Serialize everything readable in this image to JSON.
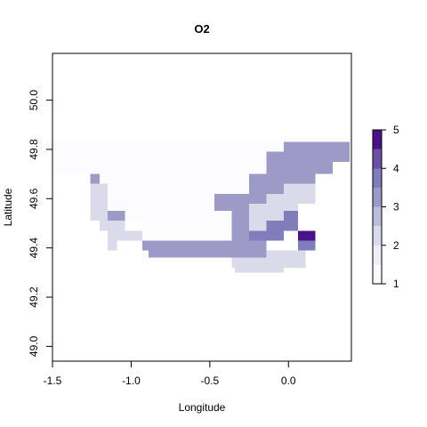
{
  "title": "O2",
  "xlabel": "Longitude",
  "ylabel": "Latitude",
  "x_ticks": [
    {
      "value": -1.5,
      "label": "-1.5"
    },
    {
      "value": -1.0,
      "label": "-1.0"
    },
    {
      "value": -0.5,
      "label": "-0.5"
    },
    {
      "value": 0.0,
      "label": "0.0"
    }
  ],
  "y_ticks": [
    {
      "value": 49.0,
      "label": "49.0"
    },
    {
      "value": 49.2,
      "label": "49.2"
    },
    {
      "value": 49.4,
      "label": "49.4"
    },
    {
      "value": 49.6,
      "label": "49.6"
    },
    {
      "value": 49.8,
      "label": "49.8"
    },
    {
      "value": 50.0,
      "label": "50.0"
    }
  ],
  "legend": {
    "range": [
      1,
      5
    ],
    "ticks": [
      {
        "value": 1,
        "label": "1"
      },
      {
        "value": 2,
        "label": "2"
      },
      {
        "value": 3,
        "label": "3"
      },
      {
        "value": 4,
        "label": "4"
      },
      {
        "value": 5,
        "label": "5"
      }
    ],
    "bins": [
      1,
      1.5,
      2,
      2.5,
      3,
      3.5,
      4,
      4.5,
      5
    ],
    "colors": [
      "#fcfbfd",
      "#efedf5",
      "#dadaeb",
      "#bcbddc",
      "#9e9ac8",
      "#807dba",
      "#6a51a3",
      "#4a1486"
    ]
  },
  "chart_data": {
    "type": "heatmap",
    "title": "O2",
    "xlabel": "Longitude",
    "ylabel": "Latitude",
    "xlim": [
      -1.5,
      0.4
    ],
    "ylim": [
      48.94,
      50.19
    ],
    "cell_size": {
      "lon": 0.11,
      "lat": 0.037
    },
    "color_scale": {
      "min": 1,
      "max": 5
    },
    "cells": [
      {
        "lon": [
          -1.5,
          0.39
        ],
        "lat": [
          49.79,
          49.83
        ],
        "value": 1.1
      },
      {
        "lon": [
          -1.5,
          -0.03
        ],
        "lat": [
          49.75,
          49.79
        ],
        "value": 1.1
      },
      {
        "lon": [
          -1.5,
          -0.14
        ],
        "lat": [
          49.7,
          49.75
        ],
        "value": 1.1
      },
      {
        "lon": [
          -1.26,
          -0.25
        ],
        "lat": [
          49.66,
          49.7
        ],
        "value": 1.1
      },
      {
        "lon": [
          -1.2,
          -0.25
        ],
        "lat": [
          49.62,
          49.66
        ],
        "value": 1.1
      },
      {
        "lon": [
          -1.15,
          -0.47
        ],
        "lat": [
          49.58,
          49.62
        ],
        "value": 1.1
      },
      {
        "lon": [
          -1.15,
          -0.47
        ],
        "lat": [
          49.55,
          49.58
        ],
        "value": 1.1
      },
      {
        "lon": [
          -1.04,
          -0.36
        ],
        "lat": [
          49.51,
          49.55
        ],
        "value": 1.1
      },
      {
        "lon": [
          -0.93,
          -0.36
        ],
        "lat": [
          49.47,
          49.51
        ],
        "value": 1.1
      },
      {
        "lon": [
          -0.93,
          -0.36
        ],
        "lat": [
          49.43,
          49.47
        ],
        "value": 1.1
      },
      {
        "lon": [
          -0.03,
          0.39
        ],
        "lat": [
          49.79,
          49.83
        ],
        "value": 3.2
      },
      {
        "lon": [
          -0.14,
          0.39
        ],
        "lat": [
          49.75,
          49.79
        ],
        "value": 3.2
      },
      {
        "lon": [
          -0.14,
          0.28
        ],
        "lat": [
          49.7,
          49.75
        ],
        "value": 3.2
      },
      {
        "lon": [
          -0.25,
          0.17
        ],
        "lat": [
          49.66,
          49.7
        ],
        "value": 3.2
      },
      {
        "lon": [
          -1.26,
          -1.2
        ],
        "lat": [
          49.66,
          49.7
        ],
        "value": 3.2
      },
      {
        "lon": [
          -0.25,
          -0.03
        ],
        "lat": [
          49.62,
          49.66
        ],
        "value": 3.2
      },
      {
        "lon": [
          -0.47,
          -0.14
        ],
        "lat": [
          49.58,
          49.62
        ],
        "value": 3.2
      },
      {
        "lon": [
          -0.47,
          -0.36
        ],
        "lat": [
          49.55,
          49.58
        ],
        "value": 3.2
      },
      {
        "lon": [
          -0.36,
          -0.25
        ],
        "lat": [
          49.43,
          49.58
        ],
        "value": 3.2
      },
      {
        "lon": [
          -1.15,
          -1.04
        ],
        "lat": [
          49.51,
          49.55
        ],
        "value": 3.2
      },
      {
        "lon": [
          -1.04,
          -0.93
        ],
        "lat": [
          49.43,
          49.47
        ],
        "value": 3.2
      },
      {
        "lon": [
          -0.93,
          -0.14
        ],
        "lat": [
          49.39,
          49.43
        ],
        "value": 3.2
      },
      {
        "lon": [
          -0.89,
          -0.14
        ],
        "lat": [
          49.36,
          49.39
        ],
        "value": 3.2
      },
      {
        "lon": [
          -0.25,
          -0.03
        ],
        "lat": [
          49.43,
          49.47
        ],
        "value": 3.6
      },
      {
        "lon": [
          -0.14,
          0.06
        ],
        "lat": [
          49.47,
          49.51
        ],
        "value": 3.6
      },
      {
        "lon": [
          -0.03,
          0.06
        ],
        "lat": [
          49.51,
          49.55
        ],
        "value": 3.6
      },
      {
        "lon": [
          0.06,
          0.17
        ],
        "lat": [
          49.39,
          49.43
        ],
        "value": 3.8
      },
      {
        "lon": [
          -0.03,
          0.17
        ],
        "lat": [
          49.62,
          49.66
        ],
        "value": 2.1
      },
      {
        "lon": [
          -0.14,
          0.17
        ],
        "lat": [
          49.58,
          49.62
        ],
        "value": 2.1
      },
      {
        "lon": [
          -0.25,
          0.06
        ],
        "lat": [
          49.55,
          49.58
        ],
        "value": 2.1
      },
      {
        "lon": [
          -0.25,
          -0.03
        ],
        "lat": [
          49.51,
          49.55
        ],
        "value": 2.1
      },
      {
        "lon": [
          -0.25,
          -0.14
        ],
        "lat": [
          49.47,
          49.51
        ],
        "value": 2.1
      },
      {
        "lon": [
          -1.26,
          -1.15
        ],
        "lat": [
          49.55,
          49.66
        ],
        "value": 2.1
      },
      {
        "lon": [
          -1.26,
          -1.15
        ],
        "lat": [
          49.51,
          49.55
        ],
        "value": 2.1
      },
      {
        "lon": [
          -1.2,
          -1.04
        ],
        "lat": [
          49.47,
          49.51
        ],
        "value": 2.1
      },
      {
        "lon": [
          -1.15,
          -0.93
        ],
        "lat": [
          49.43,
          49.47
        ],
        "value": 2.1
      },
      {
        "lon": [
          -1.15,
          -1.09
        ],
        "lat": [
          49.39,
          49.43
        ],
        "value": 2.1
      },
      {
        "lon": [
          -0.14,
          0.11
        ],
        "lat": [
          49.32,
          49.39
        ],
        "value": 2.1
      },
      {
        "lon": [
          -0.36,
          -0.14
        ],
        "lat": [
          49.32,
          49.36
        ],
        "value": 2.1
      },
      {
        "lon": [
          -0.34,
          -0.03
        ],
        "lat": [
          49.3,
          49.32
        ],
        "value": 2.1
      },
      {
        "lon": [
          0.06,
          0.11
        ],
        "lat": [
          49.43,
          49.47
        ],
        "value": 4.7
      },
      {
        "lon": [
          0.11,
          0.17
        ],
        "lat": [
          49.43,
          49.47
        ],
        "value": 4.9
      }
    ]
  }
}
